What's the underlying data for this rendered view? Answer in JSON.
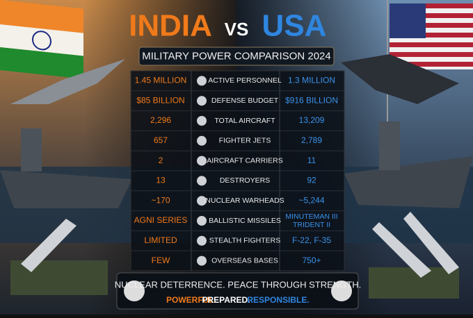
{
  "header": {
    "left": "INDIA",
    "vs": "VS",
    "right": "USA",
    "subtitle": "MILITARY POWER COMPARISON 2024"
  },
  "table": {
    "rows": [
      {
        "india": "1.45 MILLION",
        "label": "ACTIVE PERSONNEL",
        "usa": "1.3 MILLION"
      },
      {
        "india": "$85 BILLION",
        "label": "DEFENSE BUDGET",
        "usa": "$916 BILLION"
      },
      {
        "india": "2,296",
        "label": "TOTAL AIRCRAFT",
        "usa": "13,209"
      },
      {
        "india": "657",
        "label": "FIGHTER JETS",
        "usa": "2,789"
      },
      {
        "india": "2",
        "label": "AIRCRAFT CARRIERS",
        "usa": "11"
      },
      {
        "india": "13",
        "label": "DESTROYERS",
        "usa": "92"
      },
      {
        "india": "~170",
        "label": "NUCLEAR WARHEADS",
        "usa": "~5,244"
      },
      {
        "india": "AGNI SERIES",
        "label": "BALLISTIC MISSILES",
        "usa": [
          "MINUTEMAN III",
          "TRIDENT II"
        ]
      },
      {
        "india": "LIMITED",
        "label": "STEALTH FIGHTERS",
        "usa": "F-22, F-35"
      },
      {
        "india": "FEW",
        "label": "OVERSEAS BASES",
        "usa": "750+"
      }
    ]
  },
  "footer": {
    "line1": "NUCLEAR DETERRENCE. PEACE THROUGH STRENGTH.",
    "words": [
      "POWERFUL.",
      "PREPARED.",
      "RESPONSIBLE."
    ]
  }
}
